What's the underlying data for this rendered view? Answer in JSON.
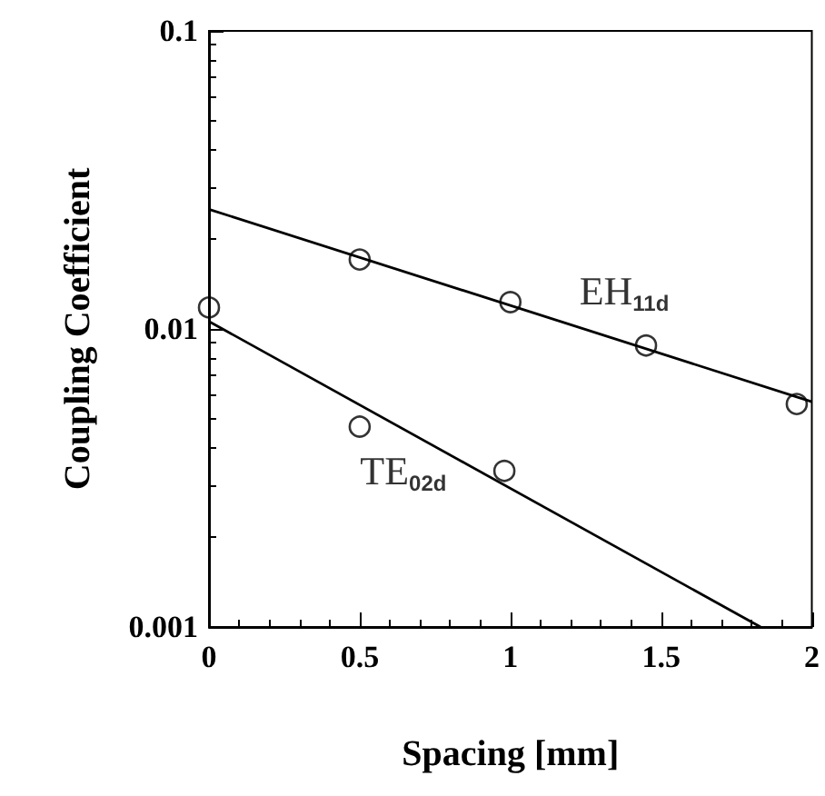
{
  "chart_data": {
    "type": "scatter",
    "xlabel": "Spacing [mm]",
    "ylabel": "Coupling Coefficient",
    "log": "y",
    "grid": false,
    "legend": false,
    "marker": "circle",
    "xlim": [
      0,
      2
    ],
    "xticks": [
      0,
      0.5,
      1,
      1.5,
      2
    ],
    "ylim": [
      0.001,
      0.1
    ],
    "yticks": [
      0.001,
      0.01,
      0.1
    ],
    "series": [
      {
        "name": "EH$_{11d}$",
        "color": "#000000",
        "x": [
          0.5,
          1,
          1.45,
          1.95
        ],
        "values": [
          0.0171,
          0.0123,
          0.0088,
          0.0056
        ]
      },
      {
        "name": "TE$_{02d}$",
        "color": "#000000",
        "x": [
          0,
          0.5,
          0.98
        ],
        "values": [
          0.0118,
          0.0047,
          0.00334
        ]
      },
      {
        "type": "line",
        "color": "#000000",
        "marker": "none",
        "line_style": "solid",
        "x": [
          0,
          2
        ],
        "values": [
          0.0252,
          0.0057
        ]
      },
      {
        "type": "line",
        "color": "#000000",
        "marker": "none",
        "line_style": "solid",
        "x": [
          0,
          1.83
        ],
        "values": [
          0.0106,
          0.001
        ]
      }
    ]
  }
}
